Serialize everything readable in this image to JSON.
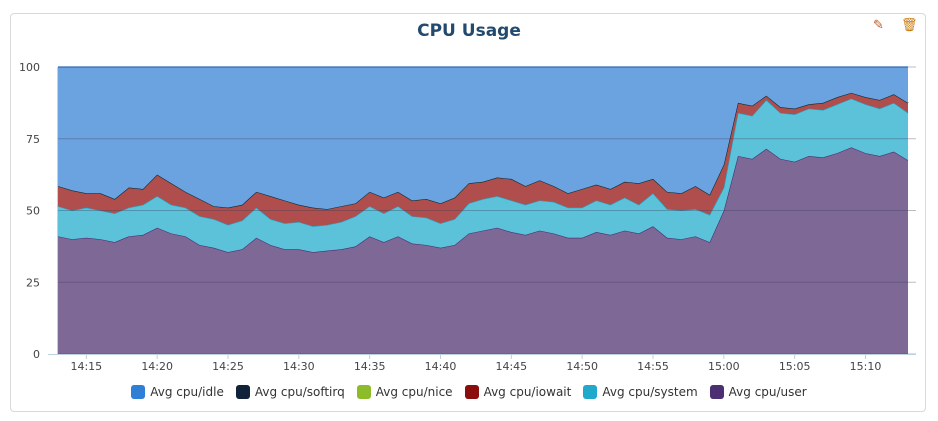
{
  "panel": {
    "edit_icon": "pencil-icon",
    "delete_icon": "trash-icon"
  },
  "chart_data": {
    "type": "area",
    "stacked": true,
    "title": "CPU Usage",
    "xlabel": "",
    "ylabel": "",
    "ylim": [
      0,
      100
    ],
    "yticks": [
      "0",
      "25",
      "50",
      "75",
      "100"
    ],
    "xticks": [
      "14:15",
      "14:20",
      "14:25",
      "14:30",
      "14:35",
      "14:40",
      "14:45",
      "14:50",
      "14:55",
      "15:00",
      "15:05",
      "15:10"
    ],
    "x_start": "14:13",
    "x_end": "15:13",
    "x_step_minutes": 1,
    "grid": true,
    "legend_position": "bottom",
    "series": [
      {
        "name": "Avg cpu/user",
        "color": "#4b2f72",
        "fill": "#7d6896",
        "values": [
          41,
          40,
          40.5,
          40,
          39,
          41,
          41.5,
          44,
          42,
          41,
          38,
          37,
          35.5,
          36.5,
          40.5,
          38,
          36.5,
          36.5,
          35.5,
          36,
          36.5,
          37.5,
          41,
          39,
          41,
          38.5,
          38,
          37,
          38,
          42,
          43,
          44,
          42.5,
          41.5,
          43,
          42,
          40.5,
          40.5,
          42.5,
          41.5,
          43,
          42,
          44.5,
          40.5,
          40,
          41,
          39,
          50,
          69,
          68,
          71.5,
          68,
          67,
          69,
          68.5,
          70,
          72,
          70,
          69,
          70.5,
          67.5
        ]
      },
      {
        "name": "Avg cpu/system",
        "color": "#21a9cc",
        "fill": "#5bc2d9",
        "values": [
          10.5,
          10,
          10.5,
          10,
          10,
          10,
          10.5,
          11,
          10,
          10,
          10,
          10,
          9.5,
          10,
          10.5,
          9,
          9,
          9.5,
          9,
          9,
          9.5,
          10.5,
          10.5,
          10,
          10.5,
          9.5,
          9.5,
          8.5,
          9,
          10.5,
          11,
          11,
          11,
          10.5,
          10.5,
          11,
          10.5,
          10.5,
          11,
          10.5,
          11.5,
          10,
          11.5,
          10,
          10,
          9.5,
          9.5,
          8,
          15,
          15,
          17,
          16,
          16.5,
          16.5,
          16.5,
          17,
          17,
          17,
          16.5,
          17,
          16.5
        ]
      },
      {
        "name": "Avg cpu/iowait",
        "color": "#8b0e0e",
        "fill": "#b04d4d",
        "values": [
          7,
          7,
          5,
          6,
          5,
          7,
          5.5,
          7.5,
          7.5,
          5.5,
          6,
          4.5,
          6,
          5.5,
          5.5,
          8,
          8,
          6,
          6.5,
          5.5,
          5.5,
          4.5,
          5,
          5.5,
          5,
          5.5,
          6.5,
          7,
          7.5,
          7,
          6,
          6.5,
          7.5,
          6.5,
          7,
          5.5,
          5,
          6.5,
          5.5,
          5.5,
          5.5,
          7.5,
          5,
          6,
          6,
          8,
          7,
          8,
          3.5,
          3.5,
          1.5,
          2,
          2,
          1.5,
          2.5,
          2.5,
          2,
          2.5,
          3,
          3,
          3.5
        ]
      },
      {
        "name": "Avg cpu/nice",
        "color": "#8cbc2a",
        "fill": "#a8cc60",
        "values": [
          0,
          0,
          0,
          0,
          0,
          0,
          0,
          0,
          0,
          0,
          0,
          0,
          0,
          0,
          0,
          0,
          0,
          0,
          0,
          0,
          0,
          0,
          0,
          0,
          0,
          0,
          0,
          0,
          0,
          0,
          0,
          0,
          0,
          0,
          0,
          0,
          0,
          0,
          0,
          0,
          0,
          0,
          0,
          0,
          0,
          0,
          0,
          0,
          0,
          0,
          0,
          0,
          0,
          0,
          0,
          0,
          0,
          0,
          0,
          0,
          0
        ]
      },
      {
        "name": "Avg cpu/softirq",
        "color": "#11233a",
        "fill": "#4a5868",
        "values": [
          0,
          0,
          0,
          0,
          0,
          0,
          0,
          0,
          0,
          0,
          0,
          0,
          0,
          0,
          0,
          0,
          0,
          0,
          0,
          0,
          0,
          0,
          0,
          0,
          0,
          0,
          0,
          0,
          0,
          0,
          0,
          0,
          0,
          0,
          0,
          0,
          0,
          0,
          0,
          0,
          0,
          0,
          0,
          0,
          0,
          0,
          0,
          0,
          0,
          0,
          0,
          0,
          0,
          0,
          0,
          0,
          0,
          0,
          0,
          0,
          0
        ]
      },
      {
        "name": "Avg cpu/idle",
        "color": "#2f7fd6",
        "fill": "#6aa3e0",
        "values": [
          41.5,
          43,
          44,
          44,
          46,
          42,
          42.5,
          37.5,
          40.5,
          43.5,
          46,
          48.5,
          49,
          48,
          43.5,
          45,
          46.5,
          48,
          49,
          49.5,
          48.5,
          47.5,
          43.5,
          45.5,
          43.5,
          46.5,
          46,
          47.5,
          45.5,
          40.5,
          40,
          38.5,
          39,
          41.5,
          39.5,
          41.5,
          44,
          42.5,
          41,
          42.5,
          40,
          40.5,
          39,
          43.5,
          44,
          41.5,
          44.5,
          34,
          12.5,
          13.5,
          10,
          14,
          14.5,
          13,
          12.5,
          10.5,
          9,
          10.5,
          11.5,
          9.5,
          12.5
        ]
      }
    ],
    "legend_order": [
      "Avg cpu/idle",
      "Avg cpu/softirq",
      "Avg cpu/nice",
      "Avg cpu/iowait",
      "Avg cpu/system",
      "Avg cpu/user"
    ]
  }
}
